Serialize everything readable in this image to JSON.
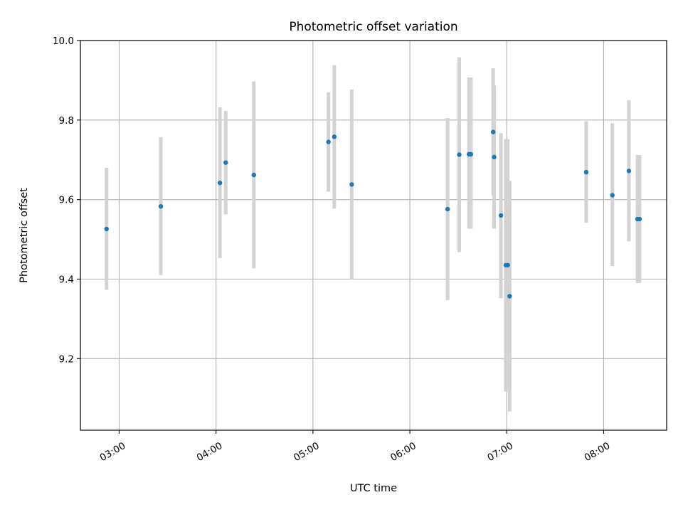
{
  "chart_data": {
    "type": "scatter",
    "title": "Photometric offset variation",
    "xlabel": "UTC time",
    "ylabel": "Photometric offset",
    "x_unit": "UTC hour",
    "xlim": [
      2.6,
      8.65
    ],
    "ylim": [
      9.02,
      10.0
    ],
    "x_ticks": [
      {
        "value": 3,
        "label": "03:00"
      },
      {
        "value": 4,
        "label": "04:00"
      },
      {
        "value": 5,
        "label": "05:00"
      },
      {
        "value": 6,
        "label": "06:00"
      },
      {
        "value": 7,
        "label": "07:00"
      },
      {
        "value": 8,
        "label": "08:00"
      }
    ],
    "y_ticks": [
      {
        "value": 9.2,
        "label": "9.2"
      },
      {
        "value": 9.4,
        "label": "9.4"
      },
      {
        "value": 9.6,
        "label": "9.6"
      },
      {
        "value": 9.8,
        "label": "9.8"
      },
      {
        "value": 10.0,
        "label": "10.0"
      }
    ],
    "grid": true,
    "colors": {
      "point": "#1f77b4",
      "errorbar": "#d3d3d3",
      "grid": "#b0b0b0"
    },
    "points": [
      {
        "x": 2.87,
        "y": 9.526,
        "ylow": 9.373,
        "yhigh": 9.68
      },
      {
        "x": 3.43,
        "y": 9.583,
        "ylow": 9.41,
        "yhigh": 9.757
      },
      {
        "x": 4.04,
        "y": 9.642,
        "ylow": 9.453,
        "yhigh": 9.832
      },
      {
        "x": 4.1,
        "y": 9.693,
        "ylow": 9.563,
        "yhigh": 9.823
      },
      {
        "x": 4.39,
        "y": 9.662,
        "ylow": 9.427,
        "yhigh": 9.897
      },
      {
        "x": 5.16,
        "y": 9.745,
        "ylow": 9.62,
        "yhigh": 9.87
      },
      {
        "x": 5.22,
        "y": 9.758,
        "ylow": 9.577,
        "yhigh": 9.938
      },
      {
        "x": 5.4,
        "y": 9.638,
        "ylow": 9.4,
        "yhigh": 9.877
      },
      {
        "x": 6.39,
        "y": 9.576,
        "ylow": 9.347,
        "yhigh": 9.805
      },
      {
        "x": 6.51,
        "y": 9.713,
        "ylow": 9.468,
        "yhigh": 9.958
      },
      {
        "x": 6.61,
        "y": 9.714,
        "ylow": 9.527,
        "yhigh": 9.907
      },
      {
        "x": 6.63,
        "y": 9.714,
        "ylow": 9.527,
        "yhigh": 9.907
      },
      {
        "x": 6.86,
        "y": 9.77,
        "ylow": 9.61,
        "yhigh": 9.93
      },
      {
        "x": 6.87,
        "y": 9.707,
        "ylow": 9.527,
        "yhigh": 9.887
      },
      {
        "x": 6.94,
        "y": 9.56,
        "ylow": 9.352,
        "yhigh": 9.767
      },
      {
        "x": 6.99,
        "y": 9.435,
        "ylow": 9.117,
        "yhigh": 9.752
      },
      {
        "x": 7.01,
        "y": 9.435,
        "ylow": 9.117,
        "yhigh": 9.752
      },
      {
        "x": 7.03,
        "y": 9.357,
        "ylow": 9.067,
        "yhigh": 9.647
      },
      {
        "x": 7.82,
        "y": 9.669,
        "ylow": 9.542,
        "yhigh": 9.797
      },
      {
        "x": 8.09,
        "y": 9.611,
        "ylow": 9.433,
        "yhigh": 9.792
      },
      {
        "x": 8.26,
        "y": 9.672,
        "ylow": 9.495,
        "yhigh": 9.85
      },
      {
        "x": 8.35,
        "y": 9.551,
        "ylow": 9.39,
        "yhigh": 9.712
      },
      {
        "x": 8.37,
        "y": 9.551,
        "ylow": 9.39,
        "yhigh": 9.712
      }
    ]
  }
}
